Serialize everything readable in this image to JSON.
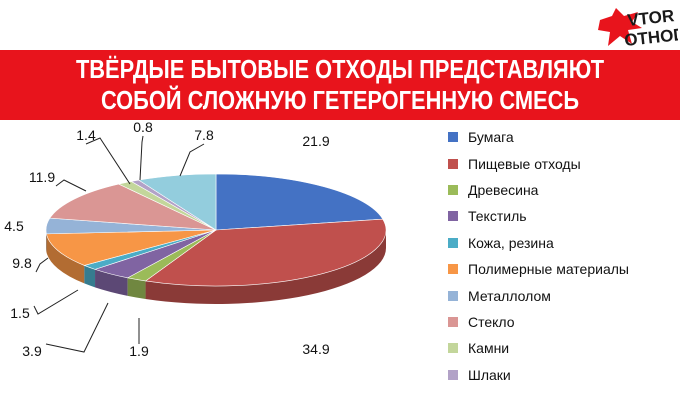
{
  "logo": {
    "line1": "VTOR",
    "line2": "OTHODI",
    "colors": {
      "red": "#e8141c",
      "black": "#1a1a1a"
    }
  },
  "header": {
    "title_line1": "ТВЁРДЫЕ БЫТОВЫЕ ОТХОДЫ ПРЕДСТАВЛЯЮТ",
    "title_line2": "СОБОЙ СЛОЖНУЮ ГЕТЕРОГЕННУЮ СМЕСЬ",
    "background": "#e8141c"
  },
  "chart_data": {
    "type": "pie",
    "style": "3d",
    "start_angle": "12 o'clock",
    "direction": "clockwise",
    "legend_position": "right",
    "categories": [
      "Бумага",
      "Пищевые отходы",
      "Древесина",
      "Текстиль",
      "Кожа, резина",
      "Полимерные материалы",
      "Металлолом",
      "Стекло",
      "Камни",
      "Шлаки"
    ],
    "values": [
      21.9,
      34.9,
      1.9,
      3.9,
      1.5,
      9.8,
      4.5,
      11.9,
      1.4,
      0.8
    ],
    "value_labels": [
      "21.9",
      "34.9",
      "1.9",
      "3.9",
      "1.5",
      "9.8",
      "4.5",
      "11.9",
      "1.4",
      "0.8"
    ],
    "colors": [
      "#4472c4",
      "#c0504d",
      "#9bbb59",
      "#8064a2",
      "#4bacc6",
      "#f79646",
      "#95b3d7",
      "#da9694",
      "#c3d69b",
      "#b2a2c7"
    ],
    "remaining_label": "7.8",
    "remaining_color": "#93cddd"
  }
}
